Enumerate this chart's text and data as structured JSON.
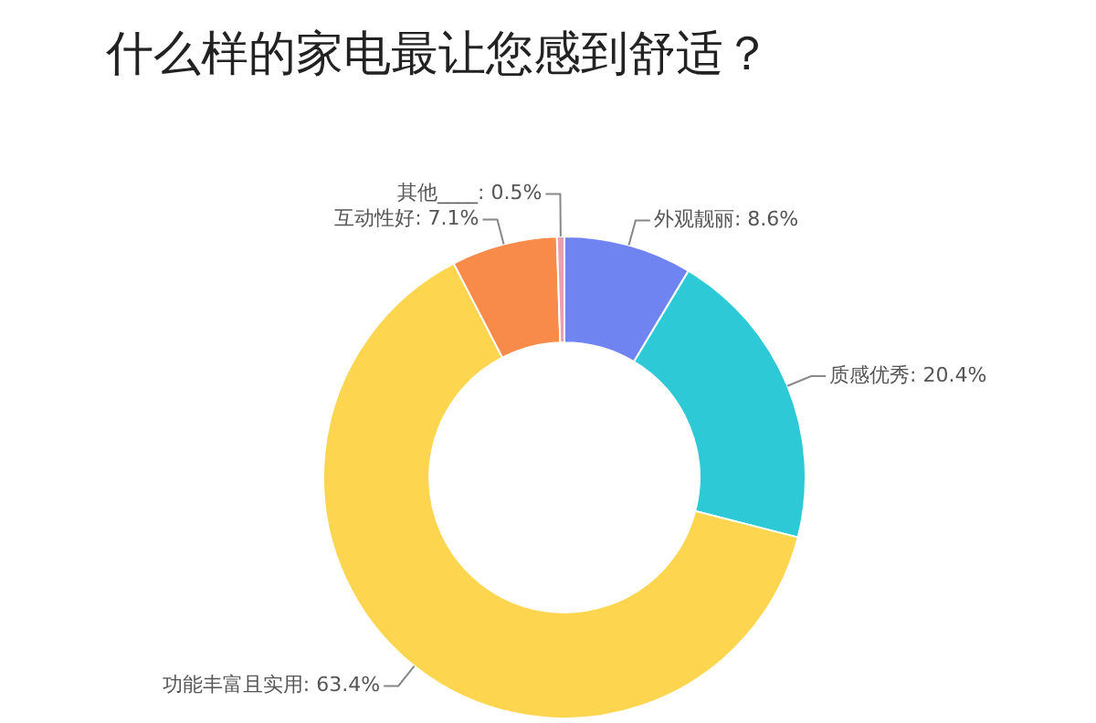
{
  "chart_data": {
    "type": "donut",
    "title": "什么样的家电最让您感到舒适？",
    "categories": [
      "外观靓丽",
      "质感优秀",
      "功能丰富且实用",
      "互动性好",
      "其他____"
    ],
    "values": [
      8.6,
      20.4,
      63.4,
      7.1,
      0.5
    ],
    "value_labels": [
      "8.6%",
      "20.4%",
      "63.4%",
      "7.1%",
      "0.5%"
    ],
    "colors": [
      "#6f84f0",
      "#2ec9d6",
      "#fdd54f",
      "#f98b4a",
      "#e8a0b0"
    ],
    "legend": false
  }
}
